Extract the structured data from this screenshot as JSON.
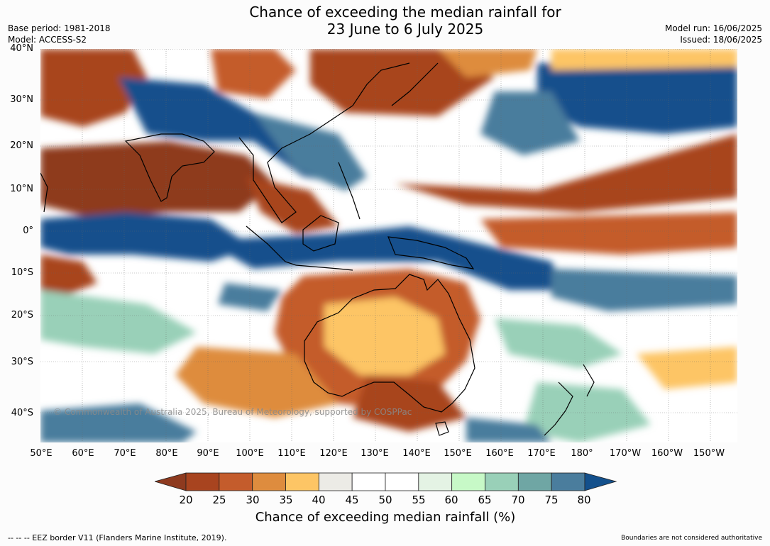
{
  "header": {
    "title_line1": "Chance of exceeding the median rainfall for",
    "title_line2": "23 June to 6 July 2025",
    "base_period": "Base period: 1981-2018",
    "model": "Model: ACCESS-S2",
    "model_run": "Model run: 16/06/2025",
    "issued": "Issued: 18/06/2025"
  },
  "map": {
    "lat_labels": [
      "40°N",
      "30°N",
      "20°N",
      "10°N",
      "0°",
      "10°S",
      "20°S",
      "30°S",
      "40°S"
    ],
    "lon_labels": [
      "50°E",
      "60°E",
      "70°E",
      "80°E",
      "90°E",
      "100°E",
      "110°E",
      "120°E",
      "130°E",
      "140°E",
      "150°E",
      "160°E",
      "170°E",
      "180°",
      "170°W",
      "160°W",
      "150°W"
    ],
    "copyright": "© Commonwealth of Australia 2025, Bureau of Meteorology, supported by COSPPac"
  },
  "colorbar": {
    "ticks": [
      "20",
      "25",
      "30",
      "35",
      "40",
      "45",
      "50",
      "55",
      "60",
      "65",
      "70",
      "75",
      "80"
    ],
    "colors": [
      "#8e3a1f",
      "#a8441f",
      "#c45c2c",
      "#de8c3e",
      "#fdc565",
      "#ecebe6",
      "#ffffff",
      "#ffffff",
      "#e4f3e4",
      "#c7f9c7",
      "#99d0b8",
      "#6fa6a4",
      "#4a7d9d",
      "#13508c"
    ],
    "title": "Chance of exceeding median rainfall (%)"
  },
  "footer": {
    "eez_note": "--  --  -- EEZ border V11 (Flanders Marine Institute, 2019).",
    "boundaries_note": "Boundaries are not considered authoritative"
  }
}
